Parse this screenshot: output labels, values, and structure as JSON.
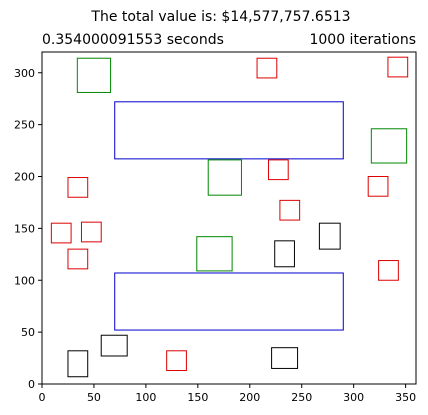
{
  "chart_data": {
    "type": "rectangles",
    "title": "The total value is: $14,577,757.6513",
    "left_label": "0.354000091553 seconds",
    "right_label": "1000 iterations",
    "xlim": [
      0,
      360
    ],
    "ylim": [
      0,
      320
    ],
    "x_ticks": [
      0,
      50,
      100,
      150,
      200,
      250,
      300,
      350
    ],
    "y_ticks": [
      0,
      50,
      100,
      150,
      200,
      250,
      300
    ],
    "grid": false,
    "rectangles": [
      {
        "x": 70,
        "y": 217,
        "w": 220,
        "h": 55,
        "color": "#0000cc"
      },
      {
        "x": 70,
        "y": 52,
        "w": 220,
        "h": 55,
        "color": "#0000cc"
      },
      {
        "x": 34,
        "y": 281,
        "w": 32,
        "h": 33,
        "color": "#008800"
      },
      {
        "x": 317,
        "y": 213,
        "w": 34,
        "h": 33,
        "color": "#008800"
      },
      {
        "x": 160,
        "y": 182,
        "w": 32,
        "h": 34,
        "color": "#008800"
      },
      {
        "x": 149,
        "y": 109,
        "w": 34,
        "h": 33,
        "color": "#008800"
      },
      {
        "x": 207,
        "y": 295,
        "w": 19,
        "h": 19,
        "color": "#dd0000"
      },
      {
        "x": 333,
        "y": 296,
        "w": 19,
        "h": 19,
        "color": "#dd0000"
      },
      {
        "x": 218,
        "y": 197,
        "w": 19,
        "h": 19,
        "color": "#dd0000"
      },
      {
        "x": 314,
        "y": 181,
        "w": 19,
        "h": 19,
        "color": "#dd0000"
      },
      {
        "x": 25,
        "y": 180,
        "w": 19,
        "h": 19,
        "color": "#dd0000"
      },
      {
        "x": 229,
        "y": 158,
        "w": 19,
        "h": 19,
        "color": "#dd0000"
      },
      {
        "x": 9,
        "y": 136,
        "w": 19,
        "h": 19,
        "color": "#dd0000"
      },
      {
        "x": 38,
        "y": 137,
        "w": 19,
        "h": 19,
        "color": "#dd0000"
      },
      {
        "x": 25,
        "y": 111,
        "w": 19,
        "h": 19,
        "color": "#dd0000"
      },
      {
        "x": 324,
        "y": 100,
        "w": 19,
        "h": 19,
        "color": "#dd0000"
      },
      {
        "x": 120,
        "y": 13,
        "w": 19,
        "h": 19,
        "color": "#dd0000"
      },
      {
        "x": 267,
        "y": 130,
        "w": 20,
        "h": 25,
        "color": "#000000"
      },
      {
        "x": 224,
        "y": 113,
        "w": 19,
        "h": 25,
        "color": "#000000"
      },
      {
        "x": 57,
        "y": 27,
        "w": 25,
        "h": 20,
        "color": "#000000"
      },
      {
        "x": 25,
        "y": 7,
        "w": 19,
        "h": 25,
        "color": "#000000"
      },
      {
        "x": 221,
        "y": 15,
        "w": 25,
        "h": 20,
        "color": "#000000"
      }
    ]
  }
}
